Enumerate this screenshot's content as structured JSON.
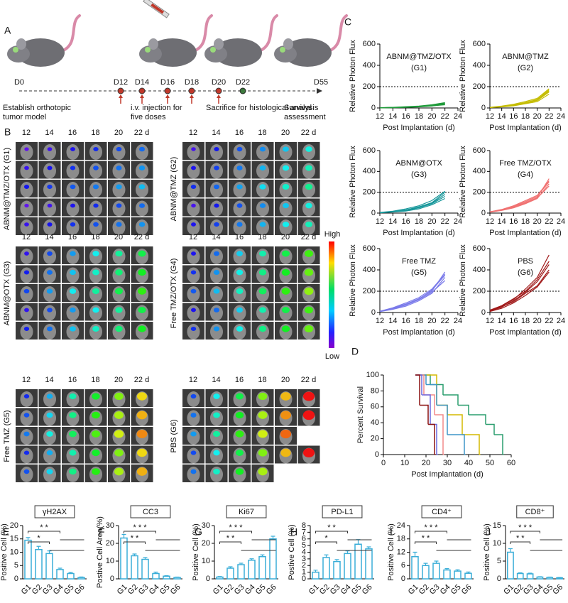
{
  "panel_letters": [
    "A",
    "B"
  ],
  "timeline": {
    "days": [
      "D0",
      "D12",
      "D14",
      "D16",
      "D18",
      "D20",
      "D22",
      "D55"
    ],
    "notes": [
      [
        "Establish orthotopic",
        "tumor model"
      ],
      [
        "i.v. injection for",
        "five doses"
      ],
      [
        "Sacrifice for histological analysis"
      ],
      [
        "Survival",
        "assessment"
      ]
    ]
  },
  "imaging": {
    "days": [
      "12",
      "14",
      "16",
      "18",
      "20",
      "22 d"
    ],
    "groups": [
      "ABNM@TMZ/OTX (G1)",
      "ABNM@TMZ (G2)",
      "ABNM@OTX (G3)",
      "Free TMZ/OTX (G4)",
      "Free TMZ (G5)",
      "PBS (G6)"
    ],
    "scale": [
      "High",
      "Low"
    ]
  },
  "chart_data": [
    {
      "type": "line",
      "panel": "C",
      "title": [
        "ABNM@TMZ/OTX",
        "(G1)"
      ],
      "xlabel": "Post Implantation (d)",
      "ylabel": "Relative Photon Flux",
      "color": "#1f9a3a",
      "x": [
        12,
        14,
        16,
        18,
        20,
        22
      ],
      "xlim": [
        12,
        24
      ],
      "xticks": [
        12,
        14,
        16,
        18,
        20,
        22,
        24
      ],
      "ylim": [
        0,
        600
      ],
      "yticks": [
        0,
        200,
        400,
        600
      ],
      "reference_line": 200,
      "series": [
        {
          "values": [
            2,
            5,
            10,
            15,
            25,
            40
          ]
        },
        {
          "values": [
            2,
            4,
            8,
            12,
            20,
            30
          ]
        },
        {
          "values": [
            1,
            3,
            6,
            10,
            18,
            35
          ]
        },
        {
          "values": [
            3,
            6,
            12,
            18,
            30,
            50
          ]
        },
        {
          "values": [
            2,
            5,
            9,
            14,
            22,
            45
          ]
        }
      ]
    },
    {
      "type": "line",
      "title": [
        "ABNM@TMZ",
        "(G2)"
      ],
      "xlabel": "Post Implantation (d)",
      "ylabel": "Relative Photon Flux",
      "color": "#c4bc00",
      "x": [
        12,
        14,
        16,
        18,
        20,
        22
      ],
      "xlim": [
        12,
        24
      ],
      "xticks": [
        12,
        14,
        16,
        18,
        20,
        22,
        24
      ],
      "ylim": [
        0,
        600
      ],
      "yticks": [
        0,
        200,
        400,
        600
      ],
      "reference_line": 200,
      "series": [
        {
          "values": [
            5,
            15,
            30,
            50,
            80,
            170
          ]
        },
        {
          "values": [
            5,
            12,
            25,
            45,
            70,
            150
          ]
        },
        {
          "values": [
            4,
            10,
            20,
            40,
            60,
            130
          ]
        },
        {
          "values": [
            6,
            18,
            35,
            60,
            90,
            180
          ]
        },
        {
          "values": [
            5,
            14,
            28,
            48,
            75,
            160
          ]
        }
      ]
    },
    {
      "type": "line",
      "title": [
        "ABNM@OTX",
        "(G3)"
      ],
      "xlabel": "Post Implantation (d)",
      "ylabel": "Relative Photon Flux",
      "color": "#17979a",
      "x": [
        12,
        14,
        16,
        18,
        20,
        22
      ],
      "xlim": [
        12,
        24
      ],
      "xticks": [
        12,
        14,
        16,
        18,
        20,
        22,
        24
      ],
      "ylim": [
        0,
        600
      ],
      "yticks": [
        0,
        200,
        400,
        600
      ],
      "reference_line": 200,
      "series": [
        {
          "values": [
            5,
            15,
            30,
            60,
            100,
            200
          ]
        },
        {
          "values": [
            4,
            12,
            25,
            50,
            90,
            160
          ]
        },
        {
          "values": [
            6,
            18,
            40,
            70,
            120,
            210
          ]
        },
        {
          "values": [
            3,
            10,
            20,
            40,
            80,
            140
          ]
        },
        {
          "values": [
            5,
            14,
            30,
            55,
            95,
            180
          ]
        }
      ]
    },
    {
      "type": "line",
      "title": [
        "Free TMZ/OTX",
        "(G4)"
      ],
      "xlabel": "Post Implantation (d)",
      "ylabel": "Relative Photon Flux",
      "color": "#f07272",
      "x": [
        12,
        14,
        16,
        18,
        20,
        22
      ],
      "xlim": [
        12,
        24
      ],
      "xticks": [
        12,
        14,
        16,
        18,
        20,
        22,
        24
      ],
      "ylim": [
        0,
        600
      ],
      "yticks": [
        0,
        200,
        400,
        600
      ],
      "reference_line": 200,
      "series": [
        {
          "values": [
            10,
            30,
            60,
            100,
            150,
            330
          ]
        },
        {
          "values": [
            8,
            25,
            50,
            90,
            140,
            280
          ]
        },
        {
          "values": [
            12,
            35,
            70,
            120,
            170,
            310
          ]
        },
        {
          "values": [
            9,
            28,
            55,
            95,
            145,
            260
          ]
        },
        {
          "values": [
            11,
            32,
            65,
            110,
            160,
            300
          ]
        }
      ]
    },
    {
      "type": "line",
      "title": [
        "Free TMZ",
        "(G5)"
      ],
      "xlabel": "Post Implantation (d)",
      "ylabel": "Relative Photon Flux",
      "color": "#7b7bea",
      "x": [
        12,
        14,
        16,
        18,
        20,
        22
      ],
      "xlim": [
        12,
        24
      ],
      "xticks": [
        12,
        14,
        16,
        18,
        20,
        22,
        24
      ],
      "ylim": [
        0,
        600
      ],
      "yticks": [
        0,
        200,
        400,
        600
      ],
      "reference_line": 200,
      "series": [
        {
          "values": [
            10,
            40,
            80,
            130,
            200,
            380
          ]
        },
        {
          "values": [
            8,
            30,
            60,
            110,
            180,
            330
          ]
        },
        {
          "values": [
            12,
            45,
            90,
            140,
            220,
            360
          ]
        },
        {
          "values": [
            9,
            35,
            70,
            120,
            190,
            300
          ]
        },
        {
          "values": [
            11,
            38,
            75,
            125,
            210,
            350
          ]
        }
      ]
    },
    {
      "type": "line",
      "title": [
        "PBS",
        "(G6)"
      ],
      "xlabel": "Post Implantation (d)",
      "ylabel": "Relative Photon Flux",
      "color": "#a01818",
      "x": [
        12,
        14,
        16,
        18,
        20,
        22
      ],
      "xlim": [
        12,
        24
      ],
      "xticks": [
        12,
        14,
        16,
        18,
        20,
        22,
        24
      ],
      "ylim": [
        0,
        600
      ],
      "yticks": [
        0,
        200,
        400,
        600
      ],
      "reference_line": 200,
      "series": [
        {
          "values": [
            20,
            60,
            120,
            220,
            330,
            540
          ]
        },
        {
          "values": [
            15,
            50,
            110,
            190,
            290,
            450
          ]
        },
        {
          "values": [
            18,
            55,
            100,
            180,
            250,
            400
          ]
        },
        {
          "values": [
            10,
            40,
            90,
            160,
            240,
            380
          ]
        },
        {
          "values": [
            22,
            65,
            130,
            200,
            310,
            480
          ]
        }
      ]
    },
    {
      "type": "step",
      "panel": "D",
      "xlabel": "Post Implantation (d)",
      "ylabel": "Percent Survival",
      "xlim": [
        0,
        60
      ],
      "xticks": [
        0,
        10,
        20,
        30,
        40,
        50,
        60
      ],
      "ylim": [
        0,
        100
      ],
      "yticks": [
        0,
        20,
        40,
        60,
        80,
        100
      ],
      "series": [
        {
          "color": "#2a9d6e",
          "x": [
            15,
            22,
            28,
            35,
            40,
            48,
            52,
            56
          ],
          "values": [
            100,
            88,
            75,
            62,
            50,
            38,
            25,
            0
          ]
        },
        {
          "color": "#d4b800",
          "x": [
            15,
            25,
            30,
            37,
            45
          ],
          "values": [
            100,
            62,
            50,
            25,
            0
          ]
        },
        {
          "color": "#3f95c8",
          "x": [
            15,
            20,
            25,
            30,
            38
          ],
          "values": [
            100,
            88,
            62,
            25,
            0
          ]
        },
        {
          "color": "#f28a8a",
          "x": [
            15,
            19,
            24,
            28
          ],
          "values": [
            100,
            75,
            50,
            0
          ]
        },
        {
          "color": "#6a6ae0",
          "x": [
            15,
            18,
            22,
            25
          ],
          "values": [
            100,
            75,
            38,
            0
          ]
        },
        {
          "color": "#8b1212",
          "x": [
            15,
            17,
            21,
            24
          ],
          "values": [
            100,
            62,
            38,
            0
          ]
        }
      ]
    },
    {
      "type": "bar",
      "panel": "E",
      "title": "γH2AX",
      "ylabel": "Positive Cell (%)",
      "color": "#3aaed8",
      "categories": [
        "G1",
        "G2",
        "G3",
        "G4",
        "G5",
        "G6"
      ],
      "values": [
        14.5,
        11,
        9.5,
        3.5,
        2,
        0.5
      ],
      "errors": [
        1,
        1.2,
        1,
        0.5,
        0.4,
        0.2
      ],
      "ylim": [
        0,
        20
      ],
      "yticks": [
        0,
        5,
        10,
        15,
        20
      ],
      "annotations": [
        "* *",
        "*"
      ]
    },
    {
      "type": "bar",
      "panel": "F",
      "title": "CC3",
      "ylabel": "Postive Cell Area(%)",
      "color": "#3aaed8",
      "categories": [
        "G1",
        "G2",
        "G3",
        "G4",
        "G5",
        "G6"
      ],
      "values": [
        23,
        13,
        11,
        3,
        1.5,
        0.8
      ],
      "errors": [
        2,
        1,
        1,
        0.8,
        0.3,
        0.2
      ],
      "ylim": [
        0,
        30
      ],
      "yticks": [
        0,
        10,
        20,
        30
      ],
      "annotations": [
        "* * *",
        "* *"
      ]
    },
    {
      "type": "bar",
      "panel": "G",
      "title": "Ki67",
      "ylabel": "Positive Cell (%)",
      "color": "#3aaed8",
      "categories": [
        "G1",
        "G2",
        "G3",
        "G4",
        "G5",
        "G6"
      ],
      "values": [
        1,
        6,
        8,
        10.5,
        12.5,
        22.5
      ],
      "errors": [
        0.3,
        0.8,
        0.8,
        0.8,
        1,
        1.5
      ],
      "ylim": [
        0,
        30
      ],
      "yticks": [
        0,
        10,
        20,
        30
      ],
      "annotations": [
        "* * *",
        "* *"
      ]
    },
    {
      "type": "bar",
      "panel": "H",
      "title": "PD-L1",
      "ylabel": "Postive Cell (%)",
      "color": "#3aaed8",
      "categories": [
        "G1",
        "G2",
        "G3",
        "G4",
        "G5",
        "G6"
      ],
      "values": [
        1,
        3.2,
        2.6,
        3.8,
        5.2,
        4.5
      ],
      "errors": [
        0.3,
        0.4,
        0.3,
        0.4,
        0.7,
        0.3
      ],
      "ylim": [
        0,
        8
      ],
      "yticks": [
        0,
        1,
        2,
        3,
        4,
        5,
        6,
        7,
        8
      ],
      "annotations": [
        "* *",
        "*"
      ]
    },
    {
      "type": "bar",
      "panel": "I",
      "title": "CD4⁺",
      "ylabel": "Positive Cell (%)",
      "color": "#3aaed8",
      "categories": [
        "G1",
        "G2",
        "G3",
        "G4",
        "G5",
        "G6"
      ],
      "values": [
        10,
        6,
        7,
        4,
        3.5,
        2.5
      ],
      "errors": [
        2,
        1,
        1,
        0.6,
        0.6,
        0.6
      ],
      "ylim": [
        0,
        24
      ],
      "yticks": [
        0,
        6,
        12,
        18,
        24
      ],
      "annotations": [
        "* * *",
        "* *"
      ]
    },
    {
      "type": "bar",
      "panel": "J",
      "title": "CD8⁺",
      "ylabel": "Positive Cell  (%)",
      "color": "#3aaed8",
      "categories": [
        "G1",
        "G2",
        "G3",
        "G4",
        "G5",
        "G6"
      ],
      "values": [
        7.5,
        1.5,
        1.4,
        0.5,
        0.4,
        0.3
      ],
      "errors": [
        1,
        0.2,
        0.2,
        0.1,
        0.1,
        0.1
      ],
      "ylim": [
        0,
        15
      ],
      "yticks": [
        0,
        5,
        10,
        15
      ],
      "annotations": [
        "* * *",
        "* *"
      ]
    }
  ]
}
